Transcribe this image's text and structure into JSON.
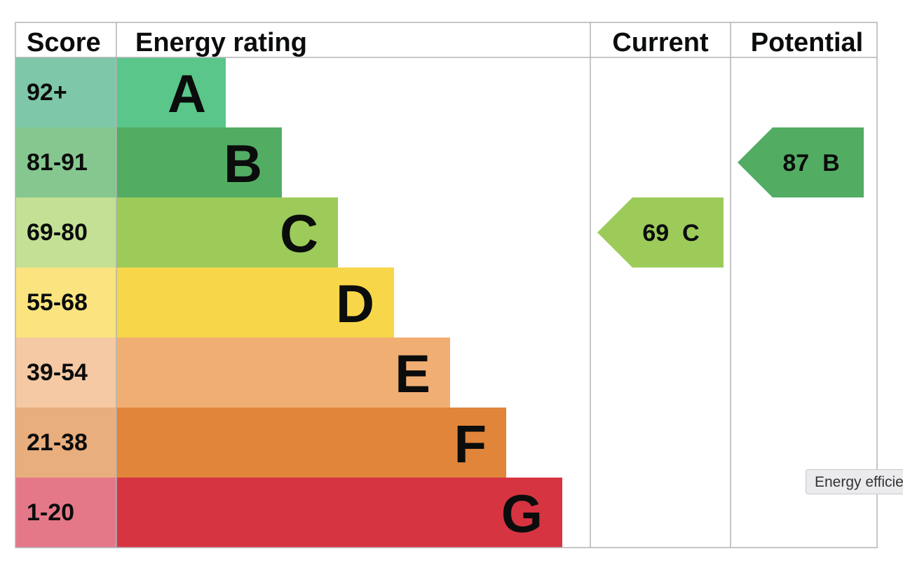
{
  "chart_data": {
    "type": "table",
    "headers": {
      "score": "Score",
      "rating": "Energy rating",
      "current": "Current",
      "potential": "Potential"
    },
    "bands": [
      {
        "letter": "A",
        "range": "92+",
        "color": "#5ac68a",
        "score_bg": "#7ec7a8"
      },
      {
        "letter": "B",
        "range": "81-91",
        "color": "#52ad63",
        "score_bg": "#86c78f"
      },
      {
        "letter": "C",
        "range": "69-80",
        "color": "#9ccb5a",
        "score_bg": "#c3e094"
      },
      {
        "letter": "D",
        "range": "55-68",
        "color": "#f7d64a",
        "score_bg": "#fbe47f"
      },
      {
        "letter": "E",
        "range": "39-54",
        "color": "#f0ae72",
        "score_bg": "#f5c9a3"
      },
      {
        "letter": "F",
        "range": "21-38",
        "color": "#e0853a",
        "score_bg": "#e9ae7d"
      },
      {
        "letter": "G",
        "range": "1-20",
        "color": "#d63441",
        "score_bg": "#e57888"
      }
    ],
    "current": {
      "value": 69,
      "letter": "C",
      "label": "69  C"
    },
    "potential": {
      "value": 87,
      "letter": "B",
      "label": "87  B"
    }
  },
  "tooltip": {
    "text": "Energy efficiency"
  }
}
